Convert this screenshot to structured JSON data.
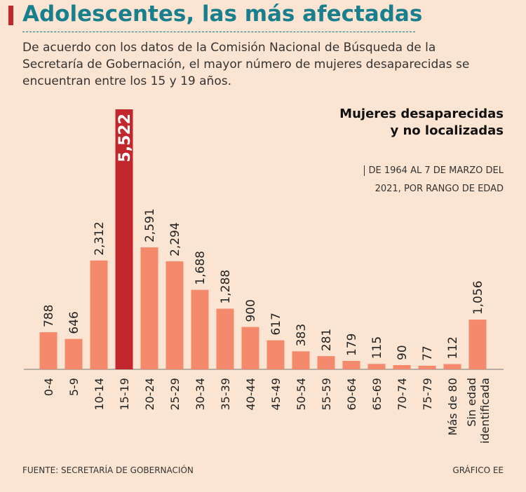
{
  "chart_data": {
    "type": "bar",
    "title": "Adolescentes, las más afectadas",
    "subtitle": "De acuerdo con los datos de la Comisión Nacional de Búsqueda de la Secretaría de Gobernación, el mayor número de mujeres desaparecidas se encuentran entre los 15 y 19 años.",
    "chart_title": "Mujeres desaparecidas y no localizadas",
    "chart_subtitle": "DE 1964 AL 7 DE MARZO DEL 2021, POR RANGO DE EDAD",
    "source": "FUENTE: SECRETARÍA DE GOBERNACIÓN",
    "credit": "GRÁFICO EE",
    "categories": [
      "0-4",
      "5-9",
      "10-14",
      "15-19",
      "20-24",
      "25-29",
      "30-34",
      "35-39",
      "40-44",
      "45-49",
      "50-54",
      "55-59",
      "60-64",
      "65-69",
      "70-74",
      "75-79",
      "Más de 80",
      "Sin edad identificada"
    ],
    "values": [
      788,
      646,
      2312,
      5522,
      2591,
      2294,
      1688,
      1288,
      900,
      617,
      383,
      281,
      179,
      115,
      90,
      77,
      112,
      1056
    ],
    "value_labels": [
      "788",
      "646",
      "2,312",
      "5,522",
      "2,591",
      "2,294",
      "1,688",
      "1,288",
      "900",
      "617",
      "383",
      "281",
      "179",
      "115",
      "90",
      "77",
      "112",
      "1,056"
    ],
    "colors": [
      "#f4896b",
      "#f4896b",
      "#f4896b",
      "#c1272d",
      "#f4896b",
      "#f4896b",
      "#f4896b",
      "#f4896b",
      "#f4896b",
      "#f4896b",
      "#f4896b",
      "#f4896b",
      "#f4896b",
      "#f4896b",
      "#f4896b",
      "#f4896b",
      "#f4896b",
      "#f4896b"
    ]
  }
}
